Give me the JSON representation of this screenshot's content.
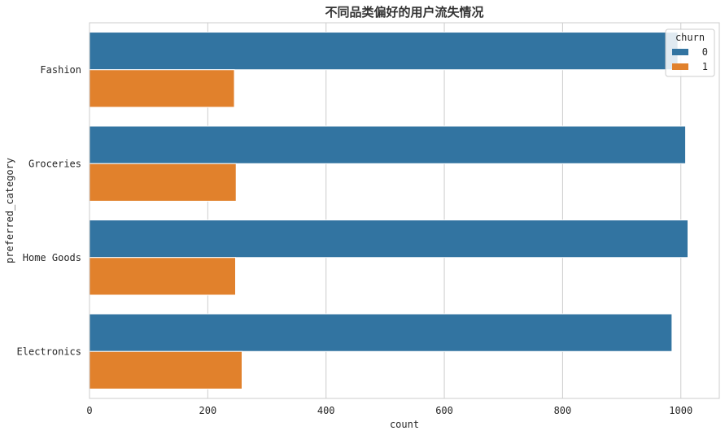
{
  "chart_data": {
    "type": "bar",
    "orientation": "horizontal",
    "title": "不同品类偏好的用户流失情况",
    "xlabel": "count",
    "ylabel": "preferred_category",
    "categories": [
      "Fashion",
      "Groceries",
      "Home Goods",
      "Electronics"
    ],
    "series": [
      {
        "name": "0",
        "color": "#3274a1",
        "values": [
          995,
          1008,
          1012,
          985
        ]
      },
      {
        "name": "1",
        "color": "#e1812c",
        "values": [
          245,
          248,
          247,
          258
        ]
      }
    ],
    "xlim": [
      0,
      1065
    ],
    "xticks": [
      0,
      200,
      400,
      600,
      800,
      1000
    ],
    "grid": true,
    "legend": {
      "title": "churn",
      "placement": "top-right"
    }
  }
}
